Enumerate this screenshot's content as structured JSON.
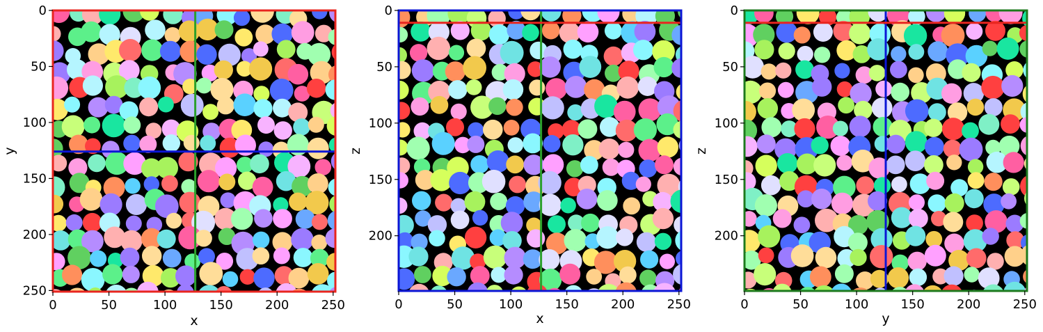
{
  "figure": {
    "panels": [
      {
        "id": "xy",
        "xlabel": "x",
        "ylabel": "y",
        "xticks": [
          "0",
          "50",
          "100",
          "150",
          "200",
          "250"
        ],
        "yticks": [
          "0",
          "50",
          "100",
          "150",
          "200",
          "250"
        ],
        "xlim": [
          0,
          252
        ],
        "ylim": [
          0,
          251
        ],
        "frame_color": "#e8251f",
        "vline": {
          "value": 127,
          "color": "#2ca02c"
        },
        "hline": {
          "value": 126,
          "color": "#0b16d6"
        }
      },
      {
        "id": "xz",
        "xlabel": "x",
        "ylabel": "z",
        "xticks": [
          "0",
          "50",
          "100",
          "150",
          "200",
          "250"
        ],
        "yticks": [
          "0",
          "50",
          "100",
          "150",
          "200"
        ],
        "xlim": [
          0,
          252
        ],
        "ylim": [
          0,
          249
        ],
        "frame_color": "#0b16d6",
        "vline": {
          "value": 127,
          "color": "#2ca02c"
        },
        "hline": {
          "value": 11,
          "color": "#e8251f"
        }
      },
      {
        "id": "yz",
        "xlabel": "y",
        "ylabel": "z",
        "xticks": [
          "0",
          "50",
          "100",
          "150",
          "200",
          "250"
        ],
        "yticks": [
          "0",
          "50",
          "100",
          "150",
          "200"
        ],
        "xlim": [
          0,
          252
        ],
        "ylim": [
          0,
          249
        ],
        "frame_color": "#1d7a1d",
        "vline": {
          "value": 126,
          "color": "#0b16d6"
        },
        "hline": {
          "value": 11,
          "color": "#e8251f"
        }
      }
    ],
    "blob_palette": [
      "#f2c94c",
      "#a7f25d",
      "#5ad1ff",
      "#ff6b6b",
      "#b58cff",
      "#7ff0c6",
      "#ff9de2",
      "#ffd08a",
      "#6aa8ff",
      "#c8ff7a",
      "#ff5fa2",
      "#8af7ff",
      "#ffe96b",
      "#9b7bff",
      "#5cf08a",
      "#ff8f5c",
      "#e0e0ff",
      "#f7b3ff",
      "#4d6bff",
      "#b5f5ff",
      "#19e6a0",
      "#ff4040",
      "#d6ff5c",
      "#ffb0b0",
      "#6fe3e3",
      "#a0ffb0",
      "#ffa0ff",
      "#60d060",
      "#c0c0ff",
      "#ffdd99"
    ]
  }
}
